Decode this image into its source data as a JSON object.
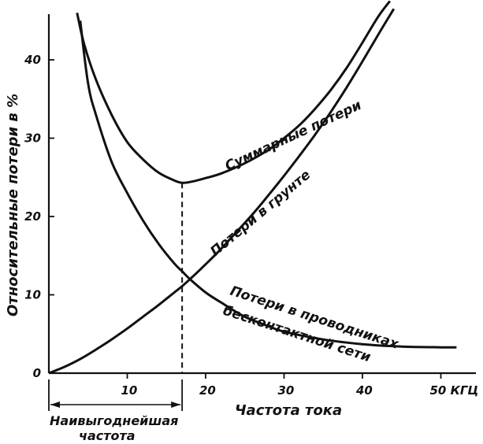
{
  "chart_data": {
    "type": "line",
    "xlabel": "Частота тока",
    "x_unit": "КГЦ",
    "ylabel": "Относительные потери в %",
    "xlim": [
      0,
      54
    ],
    "ylim": [
      0,
      46
    ],
    "x_ticks": [
      0,
      10,
      20,
      30,
      40,
      50
    ],
    "y_ticks": [
      0,
      10,
      20,
      30,
      40
    ],
    "x_tick_labels": [
      "10",
      "20",
      "30",
      "40",
      "50 КГЦ"
    ],
    "y_tick_labels": [
      "0",
      "10",
      "20",
      "30",
      "40"
    ],
    "grid": false,
    "series": [
      {
        "name": "Потери в проводниках бесконтактной сети",
        "label_lines": [
          "Потери в проводниках",
          "бесконтактной сети"
        ],
        "x": [
          4,
          5,
          6,
          8,
          10,
          12,
          14,
          16,
          17,
          18,
          20,
          22,
          25,
          28,
          30,
          35,
          40,
          45,
          50,
          52
        ],
        "y": [
          45,
          37,
          33,
          27,
          23,
          19.5,
          16.5,
          14,
          13,
          12,
          10.3,
          9,
          7.2,
          6,
          5.3,
          4.3,
          3.7,
          3.4,
          3.3,
          3.3
        ]
      },
      {
        "name": "Потери в грунте",
        "x": [
          0,
          2,
          4,
          6,
          8,
          10,
          12,
          14,
          16,
          17,
          18,
          20,
          22,
          24,
          26,
          28,
          30,
          32,
          34,
          36,
          38,
          40,
          42,
          44
        ],
        "y": [
          0,
          0.8,
          1.8,
          3,
          4.3,
          5.7,
          7.2,
          8.7,
          10.3,
          11.1,
          12,
          13.9,
          15.9,
          18.1,
          20.3,
          22.7,
          25.2,
          27.8,
          30.5,
          33.4,
          36.5,
          39.8,
          43.2,
          46.5
        ]
      },
      {
        "name": "Суммарные потери",
        "x": [
          3.6,
          4.5,
          6,
          8,
          10,
          12,
          14,
          16,
          17,
          18,
          20,
          22,
          25,
          28,
          30,
          32,
          34,
          36,
          38,
          40,
          42,
          43.5
        ],
        "y": [
          46,
          42,
          37.5,
          33,
          29.5,
          27.3,
          25.6,
          24.6,
          24.3,
          24.4,
          24.9,
          25.5,
          26.8,
          28.5,
          30,
          31.7,
          33.8,
          36.2,
          39,
          42.2,
          45.5,
          47.5
        ]
      }
    ],
    "optimum": {
      "x": 17,
      "y": 24.3,
      "label_lines": [
        "Наивыгоднейшая",
        "частота"
      ]
    }
  }
}
